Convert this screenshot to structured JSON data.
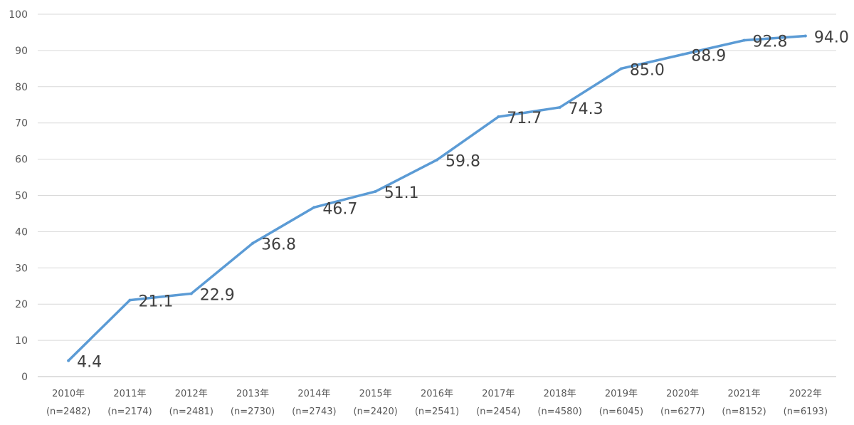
{
  "chart_data": {
    "type": "line",
    "title": "",
    "xlabel": "",
    "ylabel": "",
    "ylim": [
      0,
      100
    ],
    "yticks": [
      0,
      10,
      20,
      30,
      40,
      50,
      60,
      70,
      80,
      90,
      100
    ],
    "grid": true,
    "legend": "none",
    "line_color": "#5b9bd5",
    "categories": [
      {
        "year": "2010年",
        "n": "(n=2482)"
      },
      {
        "year": "2011年",
        "n": "(n=2174)"
      },
      {
        "year": "2012年",
        "n": "(n=2481)"
      },
      {
        "year": "2013年",
        "n": "(n=2730)"
      },
      {
        "year": "2014年",
        "n": "(n=2743)"
      },
      {
        "year": "2015年",
        "n": "(n=2420)"
      },
      {
        "year": "2016年",
        "n": "(n=2541)"
      },
      {
        "year": "2017年",
        "n": "(n=2454)"
      },
      {
        "year": "2018年",
        "n": "(n=4580)"
      },
      {
        "year": "2019年",
        "n": "(n=6045)"
      },
      {
        "year": "2020年",
        "n": "(n=6277)"
      },
      {
        "year": "2021年",
        "n": "(n=8152)"
      },
      {
        "year": "2022年",
        "n": "(n=6193)"
      }
    ],
    "series": [
      {
        "values": [
          4.4,
          21.1,
          22.9,
          36.8,
          46.7,
          51.1,
          59.8,
          71.7,
          74.3,
          85.0,
          88.9,
          92.8,
          94.0
        ],
        "labels": [
          "4.4",
          "21.1",
          "22.9",
          "36.8",
          "46.7",
          "51.1",
          "59.8",
          "71.7",
          "74.3",
          "85.0",
          "88.9",
          "92.8",
          "94.0"
        ]
      }
    ]
  }
}
